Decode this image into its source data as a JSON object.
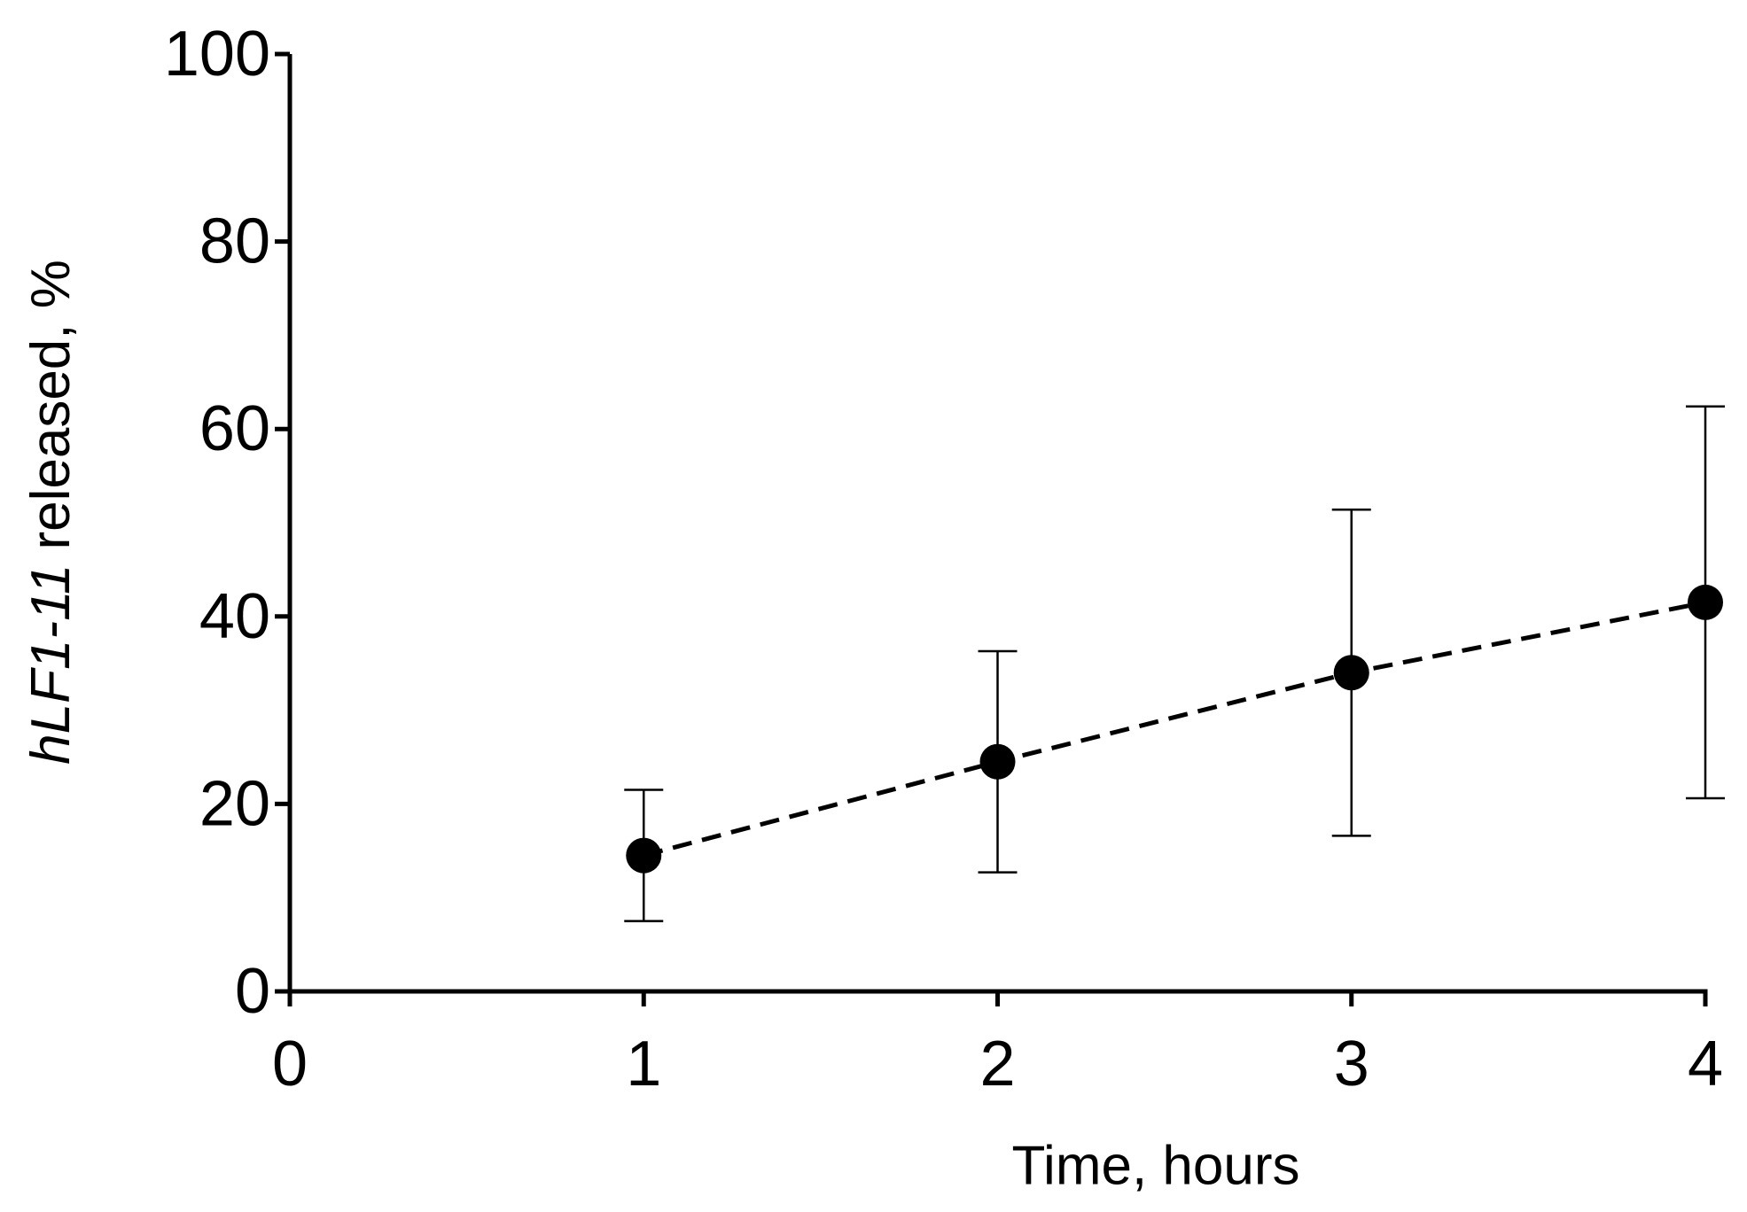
{
  "chart_data": {
    "type": "line",
    "ylabel": [
      "hLF1-11",
      "released, %"
    ],
    "xlabel": "Time, hours",
    "x": [
      1,
      2,
      3,
      4
    ],
    "series": [
      {
        "values": [
          14.5,
          24.5,
          34,
          41.5
        ],
        "errors": [
          7,
          11.8,
          17.4,
          20.9
        ],
        "color": "#000000",
        "dashed": true
      }
    ],
    "xlim": [
      0,
      4
    ],
    "xticks": [
      0,
      1,
      2,
      3,
      4
    ],
    "ylim": [
      0,
      100
    ],
    "yticks": [
      0,
      20,
      40,
      60,
      80,
      100
    ],
    "grid": false
  }
}
